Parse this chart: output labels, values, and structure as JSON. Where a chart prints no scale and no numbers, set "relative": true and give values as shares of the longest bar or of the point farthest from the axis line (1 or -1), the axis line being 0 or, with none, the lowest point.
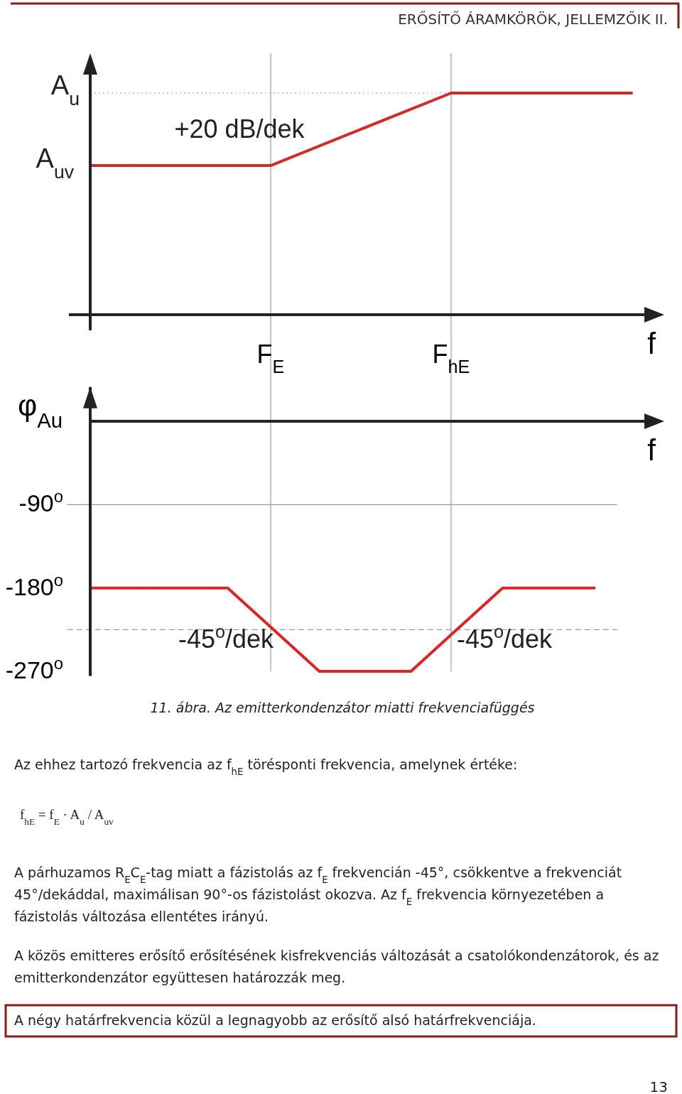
{
  "chart_data": [
    {
      "type": "line",
      "categories": [
        null,
        "F$_{E}$",
        "F$_{hE}$",
        null
      ],
      "series": [
        {
          "color": "#d42a2a",
          "values": [
            0.673,
            0.673,
            1,
            1
          ]
        }
      ],
      "relative": true,
      "xlabel": "f",
      "ref_lines": [
        {
          "axis": "y",
          "value": 1,
          "color": "#9a9a9a",
          "line_style": "dotted"
        },
        {
          "axis": "x",
          "value": "F$_{E}$",
          "color": "#9a9a9a"
        },
        {
          "axis": "x",
          "value": "F$_{hE}$",
          "color": "#9a9a9a"
        }
      ],
      "annotations": [
        "A$_{u}$",
        "A$_{uv}$",
        "+20 dB/dek",
        "ERŐSÍTŐ ÁRAMKÖRÖK, JELLEMZŐIK II."
      ]
    },
    {
      "type": "line",
      "categories": [
        null,
        null,
        null,
        null,
        null,
        null,
        null,
        null,
        null,
        null,
        null,
        null
      ],
      "series": [
        {
          "color": "#e02424",
          "values": [
            -180,
            -180,
            -180,
            -180,
            -225,
            -270,
            -270,
            -270,
            -225,
            -180,
            -180,
            -180
          ]
        }
      ],
      "ylim": [
        -275,
        37
      ],
      "yticks": [
        {
          "value": -90,
          "label": "-90$^{o}$"
        },
        {
          "value": -180,
          "label": "-180$^{o}$"
        },
        {
          "value": -270,
          "label": "-270$^{o}$"
        }
      ],
      "tick_labels": "y",
      "xlabel": "f",
      "ylabel": "φ$_{Au}$",
      "ref_lines": [
        {
          "axis": "y",
          "value": -90,
          "color": "#9a9a9a"
        },
        {
          "axis": "y",
          "value": -225,
          "color": "#9a9a9a",
          "line_style": "dashed"
        }
      ],
      "annotations": [
        "-45$^{o}$/dek",
        "-45$^{o}$/dek",
        "11. ábra. Az emitterkondenzátor miatti frekvenciafüggés",
        "Az ehhez tartozó frekvencia az f$_{hE}$ törésponti frekvencia, amelynek értéke:",
        "f$_{hE}$ = f$_{E}$ · A$_{u}$ / A$_{uv}$",
        "A párhuzamos R$_{E}$C$_{E}$-tag miatt a fázistolás az f$_{E}$ frekvencián -45°, csökkentve a frekvenciát 45°/dekáddal, maximálisan 90°-os fázistolást okozva. Az f$_{E}$ frekvencia környezetében a fázistolás változása ellentétes irányú.",
        "A közös emitteres erősítő erősítésének kisfrekvenciás változását a csatolókondenzátorok, és az emitterkondenzátor együttesen határozzák meg.",
        "A négy határfrekvencia közül a legnagyobb az erősítő alsó határfrekvenciája.",
        "13"
      ]
    }
  ]
}
